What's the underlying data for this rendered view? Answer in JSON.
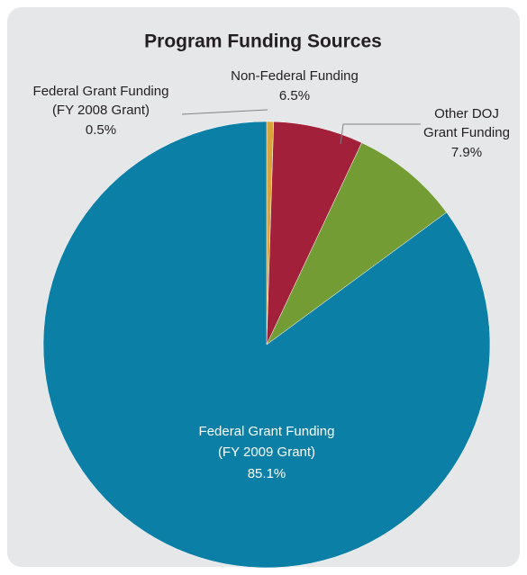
{
  "chart_data": {
    "type": "pie",
    "title": "Program Funding Sources",
    "categories": [
      [
        "Federal Grant Funding",
        "(FY 2008 Grant)"
      ],
      [
        "Non-Federal Funding"
      ],
      [
        "Other DOJ",
        "Grant Funding"
      ],
      [
        "Federal Grant Funding",
        "(FY 2009 Grant)"
      ]
    ],
    "values": [
      0.5,
      6.5,
      7.9,
      85.1
    ],
    "value_labels": [
      "0.5%",
      "6.5%",
      "7.9%",
      "85.1%"
    ],
    "colors": [
      "#d9a43a",
      "#a3203a",
      "#739c35",
      "#0b7fa6"
    ]
  }
}
